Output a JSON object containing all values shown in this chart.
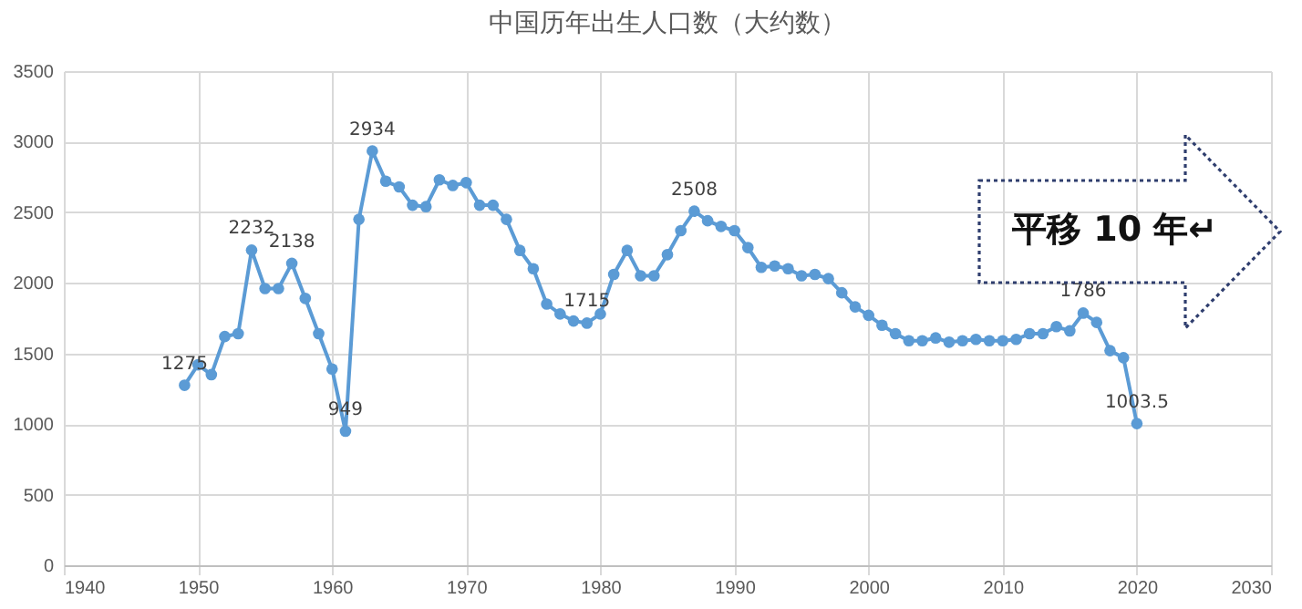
{
  "chart_data": {
    "type": "line",
    "title": "中国历年出生人口数（大约数）",
    "x": [
      1949,
      1950,
      1951,
      1952,
      1953,
      1954,
      1955,
      1956,
      1957,
      1958,
      1959,
      1960,
      1961,
      1962,
      1963,
      1964,
      1965,
      1966,
      1967,
      1968,
      1969,
      1970,
      1971,
      1972,
      1973,
      1974,
      1975,
      1976,
      1977,
      1978,
      1979,
      1980,
      1981,
      1982,
      1983,
      1984,
      1985,
      1986,
      1987,
      1988,
      1989,
      1990,
      1991,
      1992,
      1993,
      1994,
      1995,
      1996,
      1997,
      1998,
      1999,
      2000,
      2001,
      2002,
      2003,
      2004,
      2005,
      2006,
      2007,
      2008,
      2009,
      2010,
      2011,
      2012,
      2013,
      2014,
      2015,
      2016,
      2017,
      2018,
      2019,
      2020
    ],
    "series": [
      {
        "color": "#5b9bd5",
        "values": [
          1275,
          1420,
          1350,
          1620,
          1640,
          2232,
          1960,
          1960,
          2138,
          1890,
          1640,
          1390,
          949,
          2450,
          2934,
          2720,
          2680,
          2550,
          2540,
          2730,
          2690,
          2710,
          2550,
          2550,
          2450,
          2230,
          2100,
          1850,
          1780,
          1730,
          1715,
          1780,
          2060,
          2230,
          2050,
          2050,
          2200,
          2370,
          2508,
          2440,
          2400,
          2370,
          2250,
          2110,
          2120,
          2100,
          2050,
          2060,
          2030,
          1930,
          1830,
          1770,
          1700,
          1640,
          1590,
          1590,
          1610,
          1580,
          1590,
          1600,
          1590,
          1590,
          1600,
          1640,
          1640,
          1690,
          1660,
          1786,
          1720,
          1520,
          1470,
          1003.5
        ]
      }
    ],
    "xlim": [
      1940,
      2030
    ],
    "xticks": [
      1940,
      1950,
      1960,
      1970,
      1980,
      1990,
      2000,
      2010,
      2020,
      2030
    ],
    "ylim": [
      0,
      3500
    ],
    "yticks": [
      0,
      500,
      1000,
      1500,
      2000,
      2500,
      3000,
      3500
    ],
    "grid": true,
    "marker": "circle",
    "line_style": "solid",
    "annotations": [
      {
        "text": "1275",
        "x": 1949,
        "y": 1275
      },
      {
        "text": "2232",
        "x": 1954,
        "y": 2232
      },
      {
        "text": "2138",
        "x": 1957,
        "y": 2138
      },
      {
        "text": "949",
        "x": 1961,
        "y": 949
      },
      {
        "text": "2934",
        "x": 1963,
        "y": 2934
      },
      {
        "text": "1715",
        "x": 1979,
        "y": 1715
      },
      {
        "text": "2508",
        "x": 1987,
        "y": 2508
      },
      {
        "text": "1786",
        "x": 2016,
        "y": 1786
      },
      {
        "text": "1003.5",
        "x": 2020,
        "y": 1003.5
      },
      "平移 10 年↵"
    ]
  }
}
